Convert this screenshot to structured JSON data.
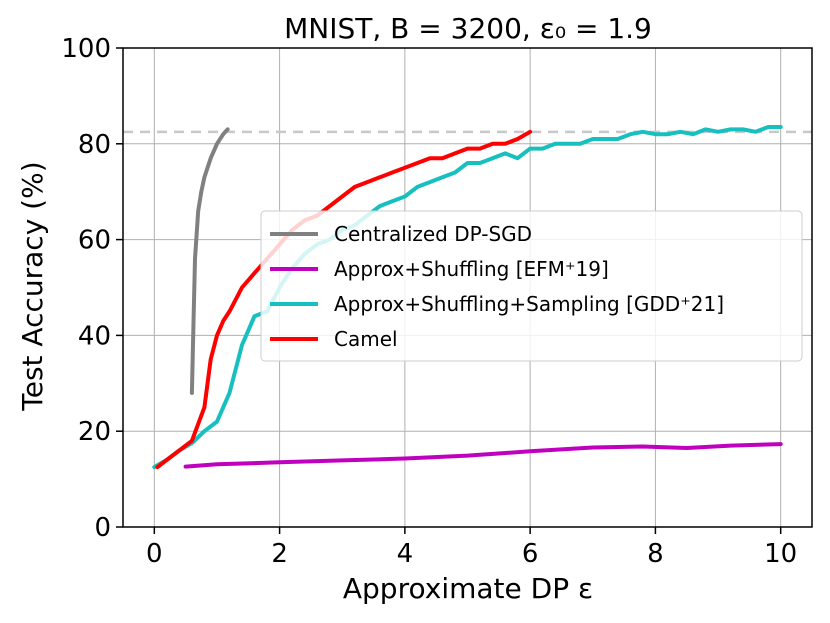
{
  "chart_data": {
    "type": "line",
    "title": "MNIST, B = 3200, ε₀ = 1.9",
    "xlabel": "Approximate DP ε",
    "ylabel": "Test Accuracy (%)",
    "xlim": [
      -0.5,
      10.5
    ],
    "ylim": [
      0,
      100
    ],
    "xticks": [
      0,
      2,
      4,
      6,
      8,
      10
    ],
    "yticks": [
      0,
      20,
      40,
      60,
      80,
      100
    ],
    "grid": true,
    "legend_position": "center-right",
    "reference_line": {
      "y": 82.5,
      "style": "dashed",
      "color": "#c8c8c8"
    },
    "series": [
      {
        "name": "Centralized DP-SGD",
        "color": "#808080",
        "x": [
          0.6,
          0.62,
          0.65,
          0.7,
          0.75,
          0.8,
          0.9,
          1.0,
          1.1,
          1.17
        ],
        "y": [
          28,
          40,
          56,
          66,
          70,
          73,
          77,
          80,
          82,
          83
        ]
      },
      {
        "name": "Approx+Shuffling [EFM⁺19]",
        "color": "#bf00bf",
        "x": [
          0.5,
          1.0,
          2.0,
          3.0,
          4.0,
          5.0,
          6.0,
          7.0,
          7.8,
          8.5,
          9.2,
          10.0
        ],
        "y": [
          12.6,
          13.1,
          13.5,
          13.9,
          14.3,
          14.9,
          15.8,
          16.6,
          16.8,
          16.5,
          17.0,
          17.3
        ]
      },
      {
        "name": "Approx+Shuffling+Sampling [GDD⁺21]",
        "color": "#17bfbf",
        "x": [
          0.0,
          0.2,
          0.4,
          0.6,
          0.8,
          1.0,
          1.2,
          1.4,
          1.6,
          1.8,
          2.0,
          2.2,
          2.4,
          2.6,
          2.8,
          3.0,
          3.2,
          3.4,
          3.6,
          3.8,
          4.0,
          4.2,
          4.4,
          4.6,
          4.8,
          5.0,
          5.2,
          5.4,
          5.6,
          5.8,
          6.0,
          6.2,
          6.4,
          6.6,
          6.8,
          7.0,
          7.2,
          7.4,
          7.6,
          7.8,
          8.0,
          8.2,
          8.4,
          8.6,
          8.8,
          9.0,
          9.2,
          9.4,
          9.6,
          9.8,
          10.0
        ],
        "y": [
          12.5,
          14,
          16,
          17.5,
          20,
          22,
          28,
          38,
          44,
          45,
          50,
          54,
          57,
          59,
          60,
          62,
          63,
          65,
          67,
          68,
          69,
          71,
          72,
          73,
          74,
          76,
          76,
          77,
          78,
          77,
          79,
          79,
          80,
          80,
          80,
          81,
          81,
          81,
          82,
          82.5,
          82,
          82,
          82.5,
          82,
          83,
          82.5,
          83,
          83,
          82.5,
          83.5,
          83.5
        ]
      },
      {
        "name": "Camel",
        "color": "#ff0000",
        "x": [
          0.05,
          0.2,
          0.4,
          0.6,
          0.8,
          0.9,
          1.0,
          1.1,
          1.2,
          1.4,
          1.6,
          1.8,
          2.0,
          2.2,
          2.4,
          2.6,
          2.8,
          3.0,
          3.2,
          3.4,
          3.6,
          3.8,
          4.0,
          4.2,
          4.4,
          4.6,
          4.8,
          5.0,
          5.2,
          5.4,
          5.6,
          5.8,
          6.0
        ],
        "y": [
          12.5,
          14,
          16,
          18,
          25,
          35,
          40,
          43,
          45,
          50,
          53,
          56,
          59,
          62,
          64,
          65,
          67,
          69,
          71,
          72,
          73,
          74,
          75,
          76,
          77,
          77,
          78,
          79,
          79,
          80,
          80,
          81,
          82.5
        ]
      }
    ]
  }
}
